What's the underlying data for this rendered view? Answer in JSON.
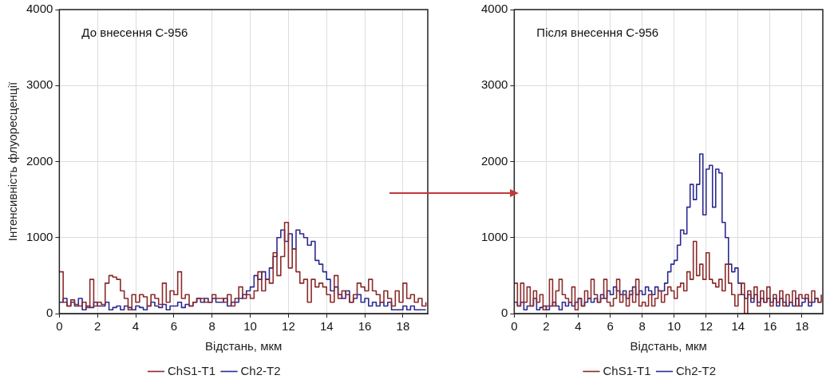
{
  "chart_data": [
    {
      "type": "step",
      "xlabel": "Відстань, мкм",
      "ylabel": "Інтенсивність флуоресценції",
      "annotations": [
        "До внесення С-956"
      ],
      "xlim": [
        0,
        19.3
      ],
      "xticks": [
        0,
        2,
        4,
        6,
        8,
        10,
        12,
        14,
        16,
        18
      ],
      "ylim": [
        0,
        4000
      ],
      "yticks": [
        0,
        1000,
        2000,
        3000,
        4000
      ],
      "grid": true,
      "legend": "bottom",
      "x": [
        0,
        0.2,
        0.4,
        0.6,
        0.8,
        1.0,
        1.2,
        1.4,
        1.6,
        1.8,
        2.0,
        2.2,
        2.4,
        2.6,
        2.8,
        3.0,
        3.2,
        3.4,
        3.6,
        3.8,
        4.0,
        4.2,
        4.4,
        4.6,
        4.8,
        5.0,
        5.2,
        5.4,
        5.6,
        5.8,
        6.0,
        6.2,
        6.4,
        6.6,
        6.8,
        7.0,
        7.2,
        7.4,
        7.6,
        7.8,
        8.0,
        8.2,
        8.4,
        8.6,
        8.8,
        9.0,
        9.2,
        9.4,
        9.6,
        9.8,
        10.0,
        10.2,
        10.4,
        10.6,
        10.8,
        11.0,
        11.2,
        11.4,
        11.6,
        11.8,
        12.0,
        12.2,
        12.4,
        12.6,
        12.8,
        13.0,
        13.2,
        13.4,
        13.6,
        13.8,
        14.0,
        14.2,
        14.4,
        14.6,
        14.8,
        15.0,
        15.2,
        15.4,
        15.6,
        15.8,
        16.0,
        16.2,
        16.4,
        16.6,
        16.8,
        17.0,
        17.2,
        17.4,
        17.6,
        17.8,
        18.0,
        18.2,
        18.4,
        18.6,
        18.8,
        19.0,
        19.2
      ],
      "series": [
        {
          "name": "ChS1-T1",
          "color": "#8b2a2a",
          "values": [
            550,
            150,
            100,
            180,
            120,
            100,
            150,
            80,
            450,
            100,
            150,
            120,
            400,
            500,
            480,
            450,
            300,
            200,
            50,
            250,
            150,
            250,
            220,
            100,
            250,
            200,
            120,
            400,
            150,
            300,
            250,
            550,
            200,
            250,
            100,
            150,
            200,
            200,
            150,
            150,
            250,
            200,
            200,
            150,
            250,
            100,
            200,
            350,
            200,
            250,
            200,
            300,
            550,
            300,
            450,
            400,
            800,
            500,
            750,
            1200,
            600,
            850,
            550,
            400,
            450,
            150,
            450,
            350,
            400,
            350,
            250,
            150,
            500,
            200,
            300,
            250,
            150,
            250,
            400,
            350,
            300,
            450,
            300,
            250,
            150,
            300,
            200,
            100,
            300,
            150,
            400,
            200,
            250,
            150,
            200,
            100,
            150
          ]
        },
        {
          "name": "Ch2-T2",
          "color": "#2b2b8f",
          "values": [
            150,
            200,
            100,
            150,
            100,
            200,
            50,
            100,
            80,
            150,
            100,
            100,
            150,
            50,
            80,
            100,
            50,
            100,
            80,
            50,
            100,
            80,
            50,
            100,
            150,
            100,
            80,
            120,
            50,
            100,
            100,
            150,
            80,
            120,
            100,
            150,
            200,
            150,
            200,
            150,
            200,
            150,
            150,
            200,
            100,
            150,
            150,
            200,
            250,
            300,
            350,
            500,
            450,
            550,
            450,
            600,
            750,
            1000,
            1100,
            950,
            1050,
            850,
            1100,
            1050,
            1000,
            900,
            950,
            700,
            650,
            550,
            450,
            300,
            350,
            250,
            200,
            300,
            150,
            200,
            250,
            150,
            200,
            100,
            150,
            100,
            150,
            100,
            150,
            50,
            50,
            50,
            100,
            50,
            100,
            50,
            50,
            50,
            50
          ]
        }
      ]
    },
    {
      "type": "step",
      "xlabel": "Відстань, мкм",
      "annotations": [
        "Після внесення С-956"
      ],
      "xlim": [
        0,
        19.3
      ],
      "xticks": [
        0,
        2,
        4,
        6,
        8,
        10,
        12,
        14,
        16,
        18
      ],
      "ylim": [
        0,
        4000
      ],
      "yticks": [
        0,
        1000,
        2000,
        3000,
        4000
      ],
      "grid": true,
      "legend": "bottom",
      "x": [
        0,
        0.2,
        0.4,
        0.6,
        0.8,
        1.0,
        1.2,
        1.4,
        1.6,
        1.8,
        2.0,
        2.2,
        2.4,
        2.6,
        2.8,
        3.0,
        3.2,
        3.4,
        3.6,
        3.8,
        4.0,
        4.2,
        4.4,
        4.6,
        4.8,
        5.0,
        5.2,
        5.4,
        5.6,
        5.8,
        6.0,
        6.2,
        6.4,
        6.6,
        6.8,
        7.0,
        7.2,
        7.4,
        7.6,
        7.8,
        8.0,
        8.2,
        8.4,
        8.6,
        8.8,
        9.0,
        9.2,
        9.4,
        9.6,
        9.8,
        10.0,
        10.2,
        10.4,
        10.6,
        10.8,
        11.0,
        11.2,
        11.4,
        11.6,
        11.8,
        12.0,
        12.2,
        12.4,
        12.6,
        12.8,
        13.0,
        13.2,
        13.4,
        13.6,
        13.8,
        14.0,
        14.2,
        14.4,
        14.6,
        14.8,
        15.0,
        15.2,
        15.4,
        15.6,
        15.8,
        16.0,
        16.2,
        16.4,
        16.6,
        16.8,
        17.0,
        17.2,
        17.4,
        17.6,
        17.8,
        18.0,
        18.2,
        18.4,
        18.6,
        18.8,
        19.0,
        19.2
      ],
      "series": [
        {
          "name": "ChS1-T1",
          "color": "#8b2a2a",
          "values": [
            400,
            100,
            400,
            150,
            350,
            100,
            300,
            150,
            250,
            50,
            100,
            450,
            100,
            300,
            450,
            250,
            200,
            150,
            350,
            50,
            200,
            100,
            300,
            200,
            450,
            250,
            150,
            200,
            450,
            150,
            100,
            200,
            450,
            150,
            250,
            100,
            300,
            150,
            450,
            100,
            150,
            100,
            250,
            100,
            200,
            300,
            150,
            250,
            350,
            300,
            200,
            350,
            400,
            300,
            550,
            450,
            950,
            500,
            650,
            450,
            800,
            450,
            400,
            350,
            450,
            300,
            650,
            400,
            250,
            100,
            250,
            400,
            0,
            300,
            200,
            350,
            100,
            300,
            150,
            350,
            100,
            250,
            150,
            300,
            100,
            250,
            150,
            300,
            100,
            250,
            200,
            250,
            150,
            300,
            200,
            150,
            250
          ]
        },
        {
          "name": "Ch2-T2",
          "color": "#2b2b8f",
          "values": [
            150,
            100,
            150,
            50,
            100,
            100,
            200,
            50,
            80,
            100,
            50,
            100,
            150,
            100,
            50,
            150,
            100,
            150,
            100,
            150,
            200,
            100,
            150,
            200,
            150,
            200,
            150,
            250,
            200,
            300,
            250,
            350,
            300,
            250,
            300,
            200,
            250,
            350,
            250,
            300,
            250,
            350,
            300,
            250,
            350,
            300,
            300,
            400,
            550,
            650,
            700,
            900,
            1100,
            1050,
            1400,
            1700,
            1500,
            1700,
            2100,
            1300,
            1900,
            1950,
            1400,
            1900,
            1850,
            1200,
            1000,
            650,
            550,
            600,
            400,
            250,
            200,
            250,
            150,
            250,
            150,
            200,
            150,
            200,
            150,
            200,
            100,
            200,
            150,
            100,
            150,
            100,
            200,
            100,
            150,
            200,
            100,
            150,
            200,
            150,
            150
          ]
        }
      ]
    }
  ]
}
